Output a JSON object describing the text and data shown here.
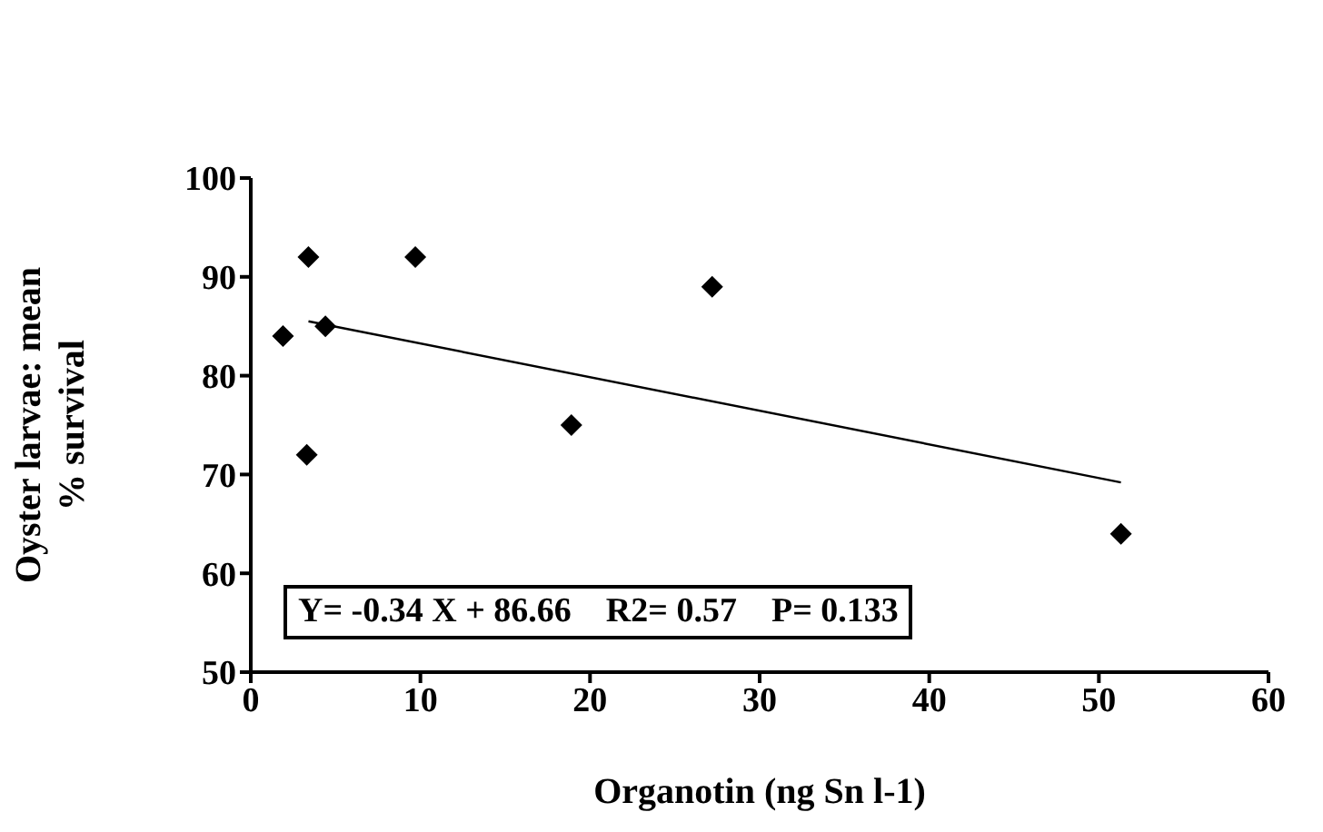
{
  "chart_data": {
    "type": "scatter",
    "xlabel": "Organotin (ng Sn l-1)",
    "ylabel": "Oyster larvae: mean % survival",
    "xlim": [
      0,
      60
    ],
    "xticks": [
      0,
      10,
      20,
      30,
      40,
      50,
      60
    ],
    "ylim": [
      50,
      100
    ],
    "yticks": [
      50,
      60,
      70,
      80,
      90,
      100
    ],
    "grid": false,
    "legend": false,
    "marker": "diamond",
    "series": [
      {
        "color": "#000000",
        "x": [
          1.9,
          3.4,
          3.3,
          4.4,
          9.7,
          18.9,
          27.2,
          51.3
        ],
        "values": [
          84,
          92,
          72,
          85,
          92,
          75,
          89,
          64
        ]
      },
      {
        "type": "line",
        "color": "#000000",
        "marker": "none",
        "x": [
          3.4,
          51.3
        ],
        "values": [
          85.5,
          69.2
        ]
      }
    ],
    "annotations": [
      "Y= -0.34 X + 86.66    R2= 0.57    P= 0.133"
    ]
  }
}
